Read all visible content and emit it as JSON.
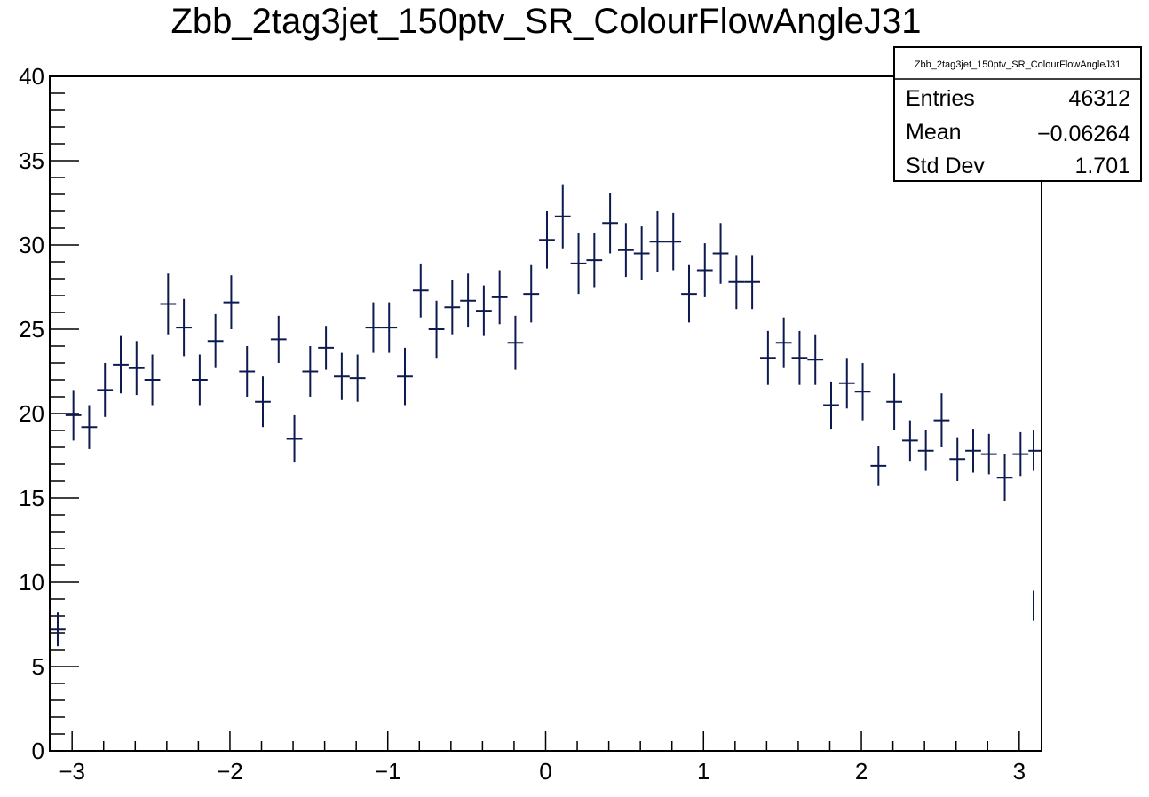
{
  "chart_data": {
    "type": "scatter",
    "title": "Zbb_2tag3jet_150ptv_SR_ColourFlowAngleJ31",
    "xlabel": "",
    "ylabel": "",
    "xlim": [
      -3.1416,
      3.1416
    ],
    "ylim": [
      0,
      40
    ],
    "bin_width": 0.1,
    "grid": false,
    "legend": "none",
    "x_ticks": [
      -3,
      -2,
      -1,
      0,
      1,
      2,
      3
    ],
    "x_tick_labels": [
      "−3",
      "−2",
      "−1",
      "0",
      "1",
      "2",
      "3"
    ],
    "y_ticks": [
      0,
      5,
      10,
      15,
      20,
      25,
      30,
      35,
      40
    ],
    "y_tick_labels": [
      "0",
      "5",
      "10",
      "15",
      "20",
      "25",
      "30",
      "35",
      "40"
    ],
    "marker_color": "#0d1a4f",
    "points": [
      {
        "x": -3.0916,
        "y": 7.2,
        "err": 1.0
      },
      {
        "x": -2.9916,
        "y": 19.9,
        "err": 1.5
      },
      {
        "x": -2.8916,
        "y": 19.2,
        "err": 1.3
      },
      {
        "x": -2.7916,
        "y": 21.4,
        "err": 1.6
      },
      {
        "x": -2.6916,
        "y": 22.9,
        "err": 1.7
      },
      {
        "x": -2.5916,
        "y": 22.7,
        "err": 1.6
      },
      {
        "x": -2.4916,
        "y": 22.0,
        "err": 1.5
      },
      {
        "x": -2.3916,
        "y": 26.5,
        "err": 1.8
      },
      {
        "x": -2.2916,
        "y": 25.1,
        "err": 1.7
      },
      {
        "x": -2.1916,
        "y": 22.0,
        "err": 1.5
      },
      {
        "x": -2.0916,
        "y": 24.3,
        "err": 1.6
      },
      {
        "x": -1.9916,
        "y": 26.6,
        "err": 1.6
      },
      {
        "x": -1.8916,
        "y": 22.5,
        "err": 1.5
      },
      {
        "x": -1.7916,
        "y": 20.7,
        "err": 1.5
      },
      {
        "x": -1.6916,
        "y": 24.4,
        "err": 1.4
      },
      {
        "x": -1.5916,
        "y": 18.5,
        "err": 1.4
      },
      {
        "x": -1.4916,
        "y": 22.5,
        "err": 1.5
      },
      {
        "x": -1.3916,
        "y": 23.9,
        "err": 1.3
      },
      {
        "x": -1.2916,
        "y": 22.2,
        "err": 1.4
      },
      {
        "x": -1.1916,
        "y": 22.1,
        "err": 1.4
      },
      {
        "x": -1.0916,
        "y": 25.1,
        "err": 1.5
      },
      {
        "x": -0.9916,
        "y": 25.1,
        "err": 1.5
      },
      {
        "x": -0.8916,
        "y": 22.2,
        "err": 1.7
      },
      {
        "x": -0.7916,
        "y": 27.3,
        "err": 1.6
      },
      {
        "x": -0.6916,
        "y": 25.0,
        "err": 1.7
      },
      {
        "x": -0.5916,
        "y": 26.3,
        "err": 1.6
      },
      {
        "x": -0.4916,
        "y": 26.7,
        "err": 1.6
      },
      {
        "x": -0.3916,
        "y": 26.1,
        "err": 1.5
      },
      {
        "x": -0.2916,
        "y": 26.9,
        "err": 1.6
      },
      {
        "x": -0.1916,
        "y": 24.2,
        "err": 1.6
      },
      {
        "x": -0.0916,
        "y": 27.1,
        "err": 1.7
      },
      {
        "x": 0.0084,
        "y": 30.3,
        "err": 1.7
      },
      {
        "x": 0.1084,
        "y": 31.7,
        "err": 1.9
      },
      {
        "x": 0.2084,
        "y": 28.9,
        "err": 1.8
      },
      {
        "x": 0.3084,
        "y": 29.1,
        "err": 1.6
      },
      {
        "x": 0.4084,
        "y": 31.3,
        "err": 1.8
      },
      {
        "x": 0.5084,
        "y": 29.7,
        "err": 1.6
      },
      {
        "x": 0.6084,
        "y": 29.5,
        "err": 1.6
      },
      {
        "x": 0.7084,
        "y": 30.2,
        "err": 1.8
      },
      {
        "x": 0.8084,
        "y": 30.2,
        "err": 1.7
      },
      {
        "x": 0.9084,
        "y": 27.1,
        "err": 1.7
      },
      {
        "x": 1.0084,
        "y": 28.5,
        "err": 1.6
      },
      {
        "x": 1.1084,
        "y": 29.5,
        "err": 1.8
      },
      {
        "x": 1.2084,
        "y": 27.8,
        "err": 1.6
      },
      {
        "x": 1.3084,
        "y": 27.8,
        "err": 1.6
      },
      {
        "x": 1.4084,
        "y": 23.3,
        "err": 1.6
      },
      {
        "x": 1.5084,
        "y": 24.2,
        "err": 1.5
      },
      {
        "x": 1.6084,
        "y": 23.3,
        "err": 1.6
      },
      {
        "x": 1.7084,
        "y": 23.2,
        "err": 1.5
      },
      {
        "x": 1.8084,
        "y": 20.5,
        "err": 1.4
      },
      {
        "x": 1.9084,
        "y": 21.8,
        "err": 1.5
      },
      {
        "x": 2.0084,
        "y": 21.3,
        "err": 1.7
      },
      {
        "x": 2.1084,
        "y": 16.9,
        "err": 1.2
      },
      {
        "x": 2.2084,
        "y": 20.7,
        "err": 1.7
      },
      {
        "x": 2.3084,
        "y": 18.4,
        "err": 1.2
      },
      {
        "x": 2.4084,
        "y": 17.8,
        "err": 1.2
      },
      {
        "x": 2.5084,
        "y": 19.6,
        "err": 1.6
      },
      {
        "x": 2.6084,
        "y": 17.3,
        "err": 1.3
      },
      {
        "x": 2.7084,
        "y": 17.8,
        "err": 1.3
      },
      {
        "x": 2.8084,
        "y": 17.6,
        "err": 1.2
      },
      {
        "x": 2.9084,
        "y": 16.2,
        "err": 1.4
      },
      {
        "x": 3.0084,
        "y": 17.6,
        "err": 1.3
      },
      {
        "x": 3.1084,
        "y": 17.8,
        "err": 1.2
      },
      {
        "x": 3.1916,
        "y": 8.6,
        "err": 0.9
      }
    ]
  },
  "stats": {
    "title": "Zbb_2tag3jet_150ptv_SR_ColourFlowAngleJ31",
    "rows": [
      {
        "label": "Entries",
        "value": "46312"
      },
      {
        "label": "Mean",
        "value": "−0.06264"
      },
      {
        "label": "Std Dev",
        "value": "1.701"
      }
    ]
  }
}
